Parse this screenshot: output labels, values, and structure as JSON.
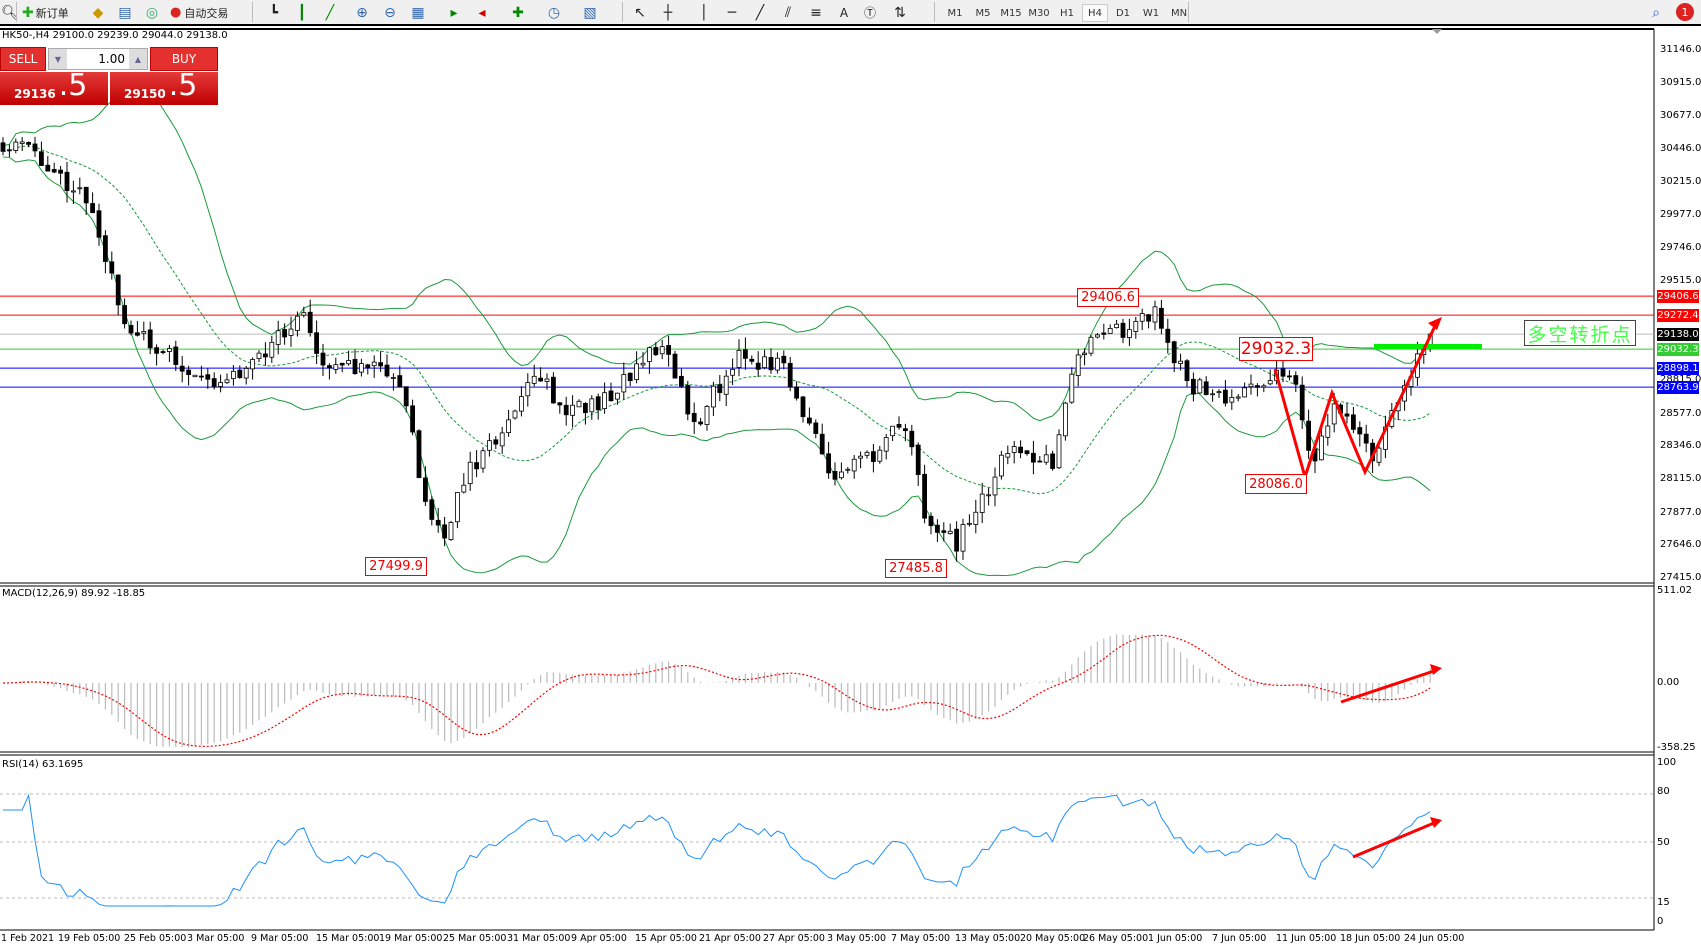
{
  "toolbar": {
    "new_order": "新订单",
    "auto_trading": "自动交易",
    "timeframes": [
      "M1",
      "M5",
      "M15",
      "M30",
      "H1",
      "H4",
      "D1",
      "W1",
      "MN"
    ],
    "active_timeframe": "H4",
    "notification_count": "1"
  },
  "chart": {
    "info": "HK50-,H4  29100.0 29239.0 29044.0 29138.0",
    "sell_label": "SELL",
    "buy_label": "BUY",
    "lot": "1.00",
    "sell_price_main": "29136",
    "sell_price_frac": ".5",
    "buy_price_main": "29150",
    "buy_price_frac": ".5",
    "price_axis": [
      "31146.0",
      "30915.0",
      "30677.0",
      "30446.0",
      "30215.0",
      "29977.0",
      "29746.0",
      "29515.0",
      "28815.0",
      "28577.0",
      "28346.0",
      "28115.0",
      "27877.0",
      "27646.0",
      "27415.0"
    ],
    "levels": [
      {
        "value": "29406.6",
        "color": "#ff0000"
      },
      {
        "value": "29272.4",
        "color": "#ff0000"
      },
      {
        "value": "29138.0",
        "color": "#000000"
      },
      {
        "value": "29032.3",
        "color": "#33cc33"
      },
      {
        "value": "28898.1",
        "color": "#0000ff"
      },
      {
        "value": "28763.9",
        "color": "#0000ff"
      }
    ],
    "annotations": {
      "high1": "29406.6",
      "pivot": "29032.3",
      "low_recent": "28086.0",
      "low1": "27499.9",
      "low2": "27485.8"
    },
    "turning_point_text": "多空转折点",
    "colors": {
      "bands": "#1a9a3a",
      "arrow": "#ff0000",
      "green_bar": "#00ee00"
    }
  },
  "macd": {
    "label": "MACD(12,26,9) 89.92 -18.85",
    "axis": [
      "511.02",
      "0.00",
      "-358.25"
    ]
  },
  "rsi": {
    "label": "RSI(14) 63.1695",
    "axis": [
      "100",
      "80",
      "50",
      "15",
      "0"
    ]
  },
  "time_axis": [
    "1 Feb 2021",
    "19 Feb 05:00",
    "25 Feb 05:00",
    "3 Mar 05:00",
    "9 Mar 05:00",
    "15 Mar 05:00",
    "19 Mar 05:00",
    "25 Mar 05:00",
    "31 Mar 05:00",
    "9 Apr 05:00",
    "15 Apr 05:00",
    "21 Apr 05:00",
    "27 Apr 05:00",
    "3 May 05:00",
    "7 May 05:00",
    "13 May 05:00",
    "20 May 05:00",
    "26 May 05:00",
    "1 Jun 05:00",
    "7 Jun 05:00",
    "11 Jun 05:00",
    "18 Jun 05:00",
    "24 Jun 05:00"
  ]
}
